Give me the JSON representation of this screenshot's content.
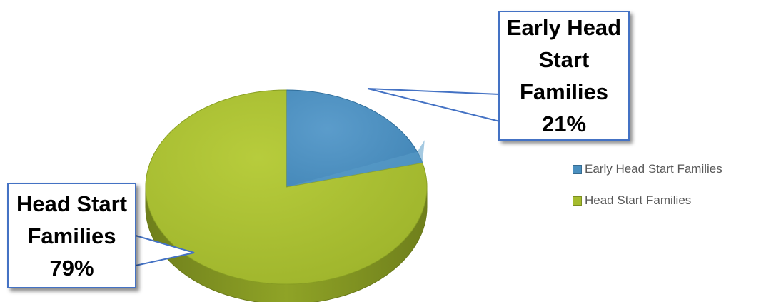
{
  "chart_data": {
    "type": "pie",
    "style": "3d",
    "categories": [
      "Early Head Start Families",
      "Head Start Families"
    ],
    "values": [
      21,
      79
    ],
    "unit": "%",
    "colors": [
      "#4a8fbf",
      "#a5bc2d"
    ],
    "data_labels": [
      {
        "category": "Early Head Start Families",
        "lines": [
          "Early Head",
          "Start",
          "Families",
          "21%"
        ]
      },
      {
        "category": "Head Start Families",
        "lines": [
          "Head Start",
          "Families",
          "79%"
        ]
      }
    ],
    "legend": {
      "position": "right",
      "entries": [
        "Early Head Start Families",
        "Head Start Families"
      ]
    }
  }
}
